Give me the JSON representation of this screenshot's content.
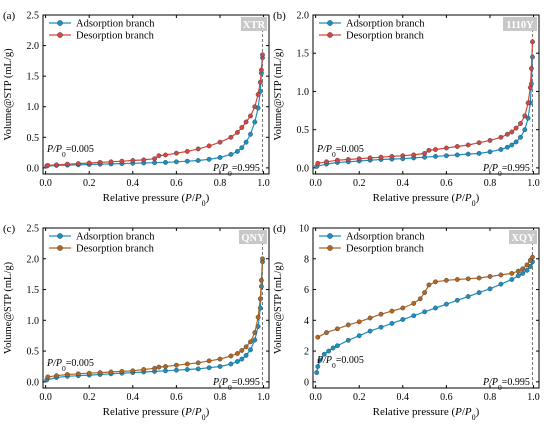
{
  "figure": {
    "legend_adsorption": "Adsorption branch",
    "legend_desorption": "Desorption branch",
    "ylabel": "Volume@STP (mL/g)",
    "xlabel_main": "Relative pressure (",
    "xlabel_P": "P",
    "xlabel_slash": "/",
    "xlabel_P0": "P",
    "xlabel_sub": "0",
    "xlabel_close": ")",
    "annot_low_prefix": "P",
    "annot_low_mid": "/P",
    "annot_low_sub": "0",
    "annot_low_value": "=0.005",
    "annot_high_prefix": "P",
    "annot_high_mid": "/P",
    "annot_high_sub": "0",
    "annot_high_value": "=0.995",
    "colors": {
      "adsorption": "#1f8fbf",
      "desorption": "#d9453d",
      "desorption_brown": "#b5651d",
      "badge_bg": "#c8c8c8",
      "axis": "#000000"
    }
  },
  "chart_data": [
    {
      "type": "line",
      "panel_label": "(a)",
      "badge": "XTR",
      "xlim": [
        0,
        1
      ],
      "ylim": [
        0,
        2.5
      ],
      "xticks": [
        "0.0",
        "0.2",
        "0.4",
        "0.6",
        "0.8",
        "1.0"
      ],
      "yticks": [
        "0.0",
        "0.5",
        "1.0",
        "1.5",
        "2.0",
        "2.5"
      ],
      "series": [
        {
          "name": "Adsorption branch",
          "x": [
            0.005,
            0.05,
            0.1,
            0.15,
            0.2,
            0.25,
            0.3,
            0.35,
            0.4,
            0.45,
            0.5,
            0.55,
            0.6,
            0.65,
            0.7,
            0.75,
            0.8,
            0.85,
            0.88,
            0.9,
            0.92,
            0.94,
            0.96,
            0.975,
            0.985,
            0.99,
            0.995
          ],
          "values": [
            0.03,
            0.04,
            0.045,
            0.05,
            0.055,
            0.06,
            0.065,
            0.07,
            0.075,
            0.08,
            0.085,
            0.09,
            0.1,
            0.11,
            0.12,
            0.14,
            0.17,
            0.22,
            0.27,
            0.33,
            0.42,
            0.55,
            0.75,
            0.98,
            1.25,
            1.55,
            1.8
          ]
        },
        {
          "name": "Desorption branch",
          "x": [
            0.995,
            0.99,
            0.985,
            0.975,
            0.96,
            0.94,
            0.92,
            0.9,
            0.88,
            0.85,
            0.8,
            0.75,
            0.7,
            0.65,
            0.6,
            0.55,
            0.52,
            0.5,
            0.45,
            0.4,
            0.35,
            0.3,
            0.25,
            0.2,
            0.15,
            0.1,
            0.05,
            0.01
          ],
          "values": [
            1.85,
            1.6,
            1.4,
            1.2,
            1.0,
            0.85,
            0.75,
            0.66,
            0.58,
            0.5,
            0.42,
            0.36,
            0.31,
            0.27,
            0.24,
            0.21,
            0.2,
            0.15,
            0.13,
            0.12,
            0.11,
            0.1,
            0.09,
            0.08,
            0.07,
            0.06,
            0.05,
            0.04
          ]
        }
      ]
    },
    {
      "type": "line",
      "panel_label": "(b)",
      "badge": "1110Y",
      "xlim": [
        0,
        1
      ],
      "ylim": [
        0,
        2.0
      ],
      "xticks": [
        "0.0",
        "0.2",
        "0.4",
        "0.6",
        "0.8",
        "1.0"
      ],
      "yticks": [
        "0.0",
        "0.5",
        "1.0",
        "1.5",
        "2.0"
      ],
      "series": [
        {
          "name": "Adsorption branch",
          "x": [
            0.005,
            0.05,
            0.1,
            0.15,
            0.2,
            0.25,
            0.3,
            0.35,
            0.4,
            0.45,
            0.5,
            0.55,
            0.6,
            0.65,
            0.7,
            0.75,
            0.8,
            0.85,
            0.88,
            0.9,
            0.92,
            0.94,
            0.96,
            0.975,
            0.985,
            0.99,
            0.995
          ],
          "values": [
            0.02,
            0.05,
            0.07,
            0.08,
            0.09,
            0.1,
            0.11,
            0.115,
            0.12,
            0.13,
            0.14,
            0.15,
            0.16,
            0.17,
            0.18,
            0.19,
            0.21,
            0.24,
            0.27,
            0.3,
            0.34,
            0.4,
            0.5,
            0.65,
            0.85,
            1.1,
            1.45
          ]
        },
        {
          "name": "Desorption branch",
          "x": [
            0.995,
            0.99,
            0.985,
            0.975,
            0.96,
            0.94,
            0.92,
            0.9,
            0.88,
            0.85,
            0.8,
            0.75,
            0.7,
            0.65,
            0.6,
            0.55,
            0.52,
            0.5,
            0.45,
            0.4,
            0.35,
            0.3,
            0.25,
            0.2,
            0.15,
            0.1,
            0.05,
            0.01
          ],
          "values": [
            1.65,
            1.3,
            1.05,
            0.85,
            0.68,
            0.58,
            0.52,
            0.47,
            0.44,
            0.4,
            0.36,
            0.33,
            0.3,
            0.28,
            0.26,
            0.24,
            0.23,
            0.19,
            0.17,
            0.16,
            0.15,
            0.14,
            0.13,
            0.12,
            0.11,
            0.1,
            0.08,
            0.06
          ]
        }
      ]
    },
    {
      "type": "line",
      "panel_label": "(c)",
      "badge": "QNY",
      "xlim": [
        0,
        1
      ],
      "ylim": [
        0,
        2.5
      ],
      "xticks": [
        "0.0",
        "0.2",
        "0.4",
        "0.6",
        "0.8",
        "1.0"
      ],
      "yticks": [
        "0.0",
        "0.5",
        "1.0",
        "1.5",
        "2.0",
        "2.5"
      ],
      "series": [
        {
          "name": "Adsorption branch",
          "x": [
            0.005,
            0.05,
            0.1,
            0.15,
            0.2,
            0.25,
            0.3,
            0.35,
            0.4,
            0.45,
            0.5,
            0.55,
            0.6,
            0.65,
            0.7,
            0.75,
            0.8,
            0.85,
            0.88,
            0.9,
            0.92,
            0.94,
            0.96,
            0.975,
            0.985,
            0.99,
            0.995
          ],
          "values": [
            0.03,
            0.07,
            0.09,
            0.1,
            0.11,
            0.12,
            0.13,
            0.14,
            0.15,
            0.16,
            0.17,
            0.18,
            0.19,
            0.2,
            0.21,
            0.23,
            0.25,
            0.29,
            0.33,
            0.37,
            0.43,
            0.52,
            0.68,
            0.9,
            1.2,
            1.55,
            1.95
          ]
        },
        {
          "name": "Desorption branch",
          "x": [
            0.995,
            0.99,
            0.985,
            0.975,
            0.96,
            0.94,
            0.92,
            0.9,
            0.88,
            0.85,
            0.8,
            0.75,
            0.7,
            0.65,
            0.6,
            0.55,
            0.52,
            0.5,
            0.45,
            0.4,
            0.35,
            0.3,
            0.25,
            0.2,
            0.15,
            0.1,
            0.05,
            0.01
          ],
          "values": [
            2.0,
            1.65,
            1.35,
            1.05,
            0.8,
            0.65,
            0.57,
            0.51,
            0.46,
            0.42,
            0.37,
            0.34,
            0.31,
            0.29,
            0.27,
            0.25,
            0.24,
            0.22,
            0.2,
            0.18,
            0.17,
            0.16,
            0.15,
            0.14,
            0.13,
            0.12,
            0.1,
            0.08
          ]
        }
      ]
    },
    {
      "type": "line",
      "panel_label": "(d)",
      "badge": "XQY",
      "xlim": [
        0,
        1
      ],
      "ylim": [
        0,
        10
      ],
      "xticks": [
        "0.0",
        "0.2",
        "0.4",
        "0.6",
        "0.8",
        "1.0"
      ],
      "yticks": [
        "0",
        "2",
        "4",
        "6",
        "8",
        "10"
      ],
      "series": [
        {
          "name": "Adsorption branch",
          "x": [
            0.005,
            0.01,
            0.02,
            0.04,
            0.06,
            0.08,
            0.1,
            0.15,
            0.2,
            0.25,
            0.3,
            0.35,
            0.4,
            0.45,
            0.5,
            0.55,
            0.6,
            0.65,
            0.7,
            0.75,
            0.8,
            0.85,
            0.9,
            0.93,
            0.95,
            0.97,
            0.985,
            0.995
          ],
          "values": [
            0.6,
            1.0,
            1.4,
            1.8,
            2.0,
            2.2,
            2.35,
            2.7,
            3.0,
            3.3,
            3.55,
            3.8,
            4.05,
            4.3,
            4.55,
            4.8,
            5.05,
            5.3,
            5.55,
            5.8,
            6.05,
            6.35,
            6.65,
            6.9,
            7.05,
            7.25,
            7.5,
            7.8
          ]
        },
        {
          "name": "Desorption branch",
          "x": [
            0.995,
            0.985,
            0.97,
            0.95,
            0.93,
            0.9,
            0.85,
            0.8,
            0.75,
            0.7,
            0.65,
            0.6,
            0.55,
            0.52,
            0.5,
            0.48,
            0.45,
            0.4,
            0.35,
            0.3,
            0.25,
            0.2,
            0.15,
            0.1,
            0.05,
            0.01
          ],
          "values": [
            8.1,
            7.9,
            7.6,
            7.35,
            7.2,
            7.05,
            6.95,
            6.85,
            6.75,
            6.7,
            6.65,
            6.6,
            6.5,
            6.3,
            5.8,
            5.4,
            5.1,
            4.8,
            4.6,
            4.4,
            4.15,
            3.9,
            3.7,
            3.45,
            3.2,
            2.9
          ]
        }
      ]
    }
  ]
}
